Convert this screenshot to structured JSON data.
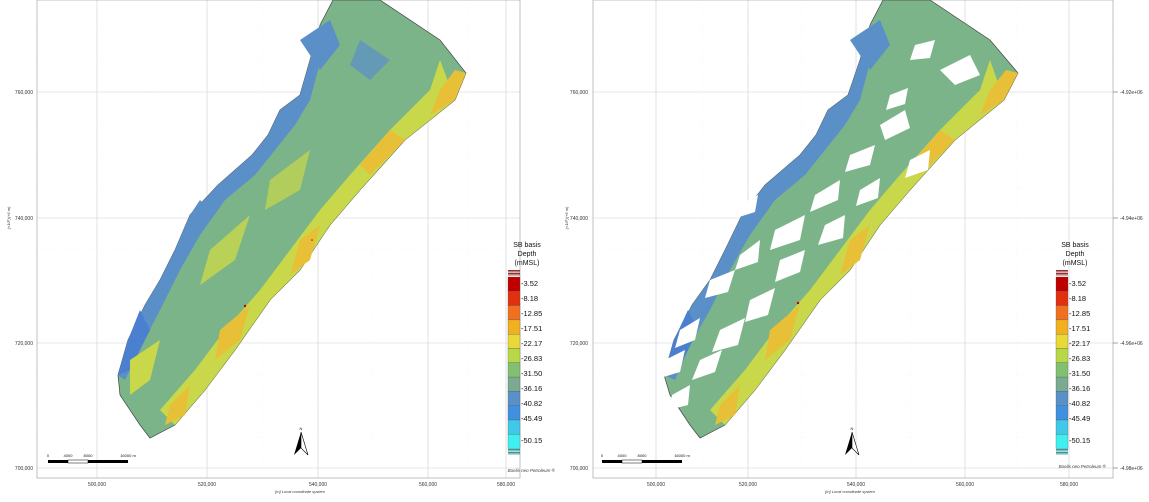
{
  "panels": [
    {
      "id": "left",
      "x_ticks": [
        "500,000",
        "520,000",
        "540,000",
        "560,000",
        "580,000"
      ],
      "y_ticks": [
        "760,000",
        "740,000",
        "720,000",
        "700,000"
      ],
      "x_axis_label": "[m]  Local coordinate system",
      "y_axis_label": "(×10⁵)(+6 m)",
      "credit": "Boelis neo Petroleum ®",
      "north": "N",
      "scalebar": {
        "labels": [
          "0",
          "4000",
          "8000",
          "16000 m"
        ]
      }
    },
    {
      "id": "right",
      "x_ticks": [
        "500,000",
        "520,000",
        "540,000",
        "560,000",
        "580,000"
      ],
      "y_ticks": [
        "760,000",
        "740,000",
        "720,000",
        "700,000"
      ],
      "right_y_ticks": [
        "-4.92e+06",
        "-4.94e+06",
        "-4.96e+06",
        "-4.98e+06"
      ],
      "x_axis_label": "[m]  Local coordinate system",
      "y_axis_label": "(×10⁵)(+6 m)",
      "credit": "Boelis neo Petroleum ®",
      "north": "N",
      "scalebar": {
        "labels": [
          "0",
          "4000",
          "8000",
          "16000 m"
        ]
      }
    }
  ],
  "legend": {
    "title_lines": [
      "SB basis",
      "Depth",
      "(mMSL)"
    ],
    "values": [
      "-3.52",
      "-8.18",
      "-12.85",
      "-17.51",
      "-22.17",
      "-26.83",
      "-31.50",
      "-36.16",
      "-40.82",
      "-45.49",
      "-50.15"
    ],
    "colors": [
      "#c00000",
      "#e03010",
      "#f07020",
      "#f0b020",
      "#e8d838",
      "#b8d848",
      "#80c070",
      "#7aaa90",
      "#5890c8",
      "#4090e0",
      "#40c8e8",
      "#40f0f0"
    ]
  },
  "map_colors": {
    "deep": "#5a8fc8",
    "mid": "#7cb48a",
    "shallow": "#c8d84a",
    "shallower": "#e8c038",
    "edge": "#444444",
    "gap": "#ffffff"
  }
}
